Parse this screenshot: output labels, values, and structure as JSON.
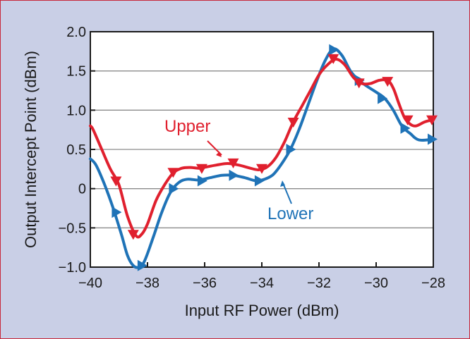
{
  "chart_data": {
    "type": "line",
    "title": "",
    "xlabel": "Input RF Power (dBm)",
    "ylabel": "Output Intercept Point (dBm)",
    "xlim": [
      -40,
      -28
    ],
    "ylim": [
      -1.0,
      2.0
    ],
    "x_ticks": [
      -40,
      -38,
      -36,
      -34,
      -32,
      -30,
      -28
    ],
    "x_tick_labels": [
      "−40",
      "−38",
      "−36",
      "−34",
      "−32",
      "−30",
      "−28"
    ],
    "y_ticks": [
      -1.0,
      -0.5,
      0,
      0.5,
      1.0,
      1.5,
      2.0
    ],
    "y_tick_labels": [
      "−1.0",
      "−0.5",
      "0",
      "0.5",
      "1.0",
      "1.5",
      "2.0"
    ],
    "grid": "horizontal",
    "series": [
      {
        "name": "Upper",
        "color": "#e0202e",
        "marker": "triangle-down",
        "curve": [
          [
            -40.0,
            0.8
          ],
          [
            -39.9,
            0.75
          ],
          [
            -39.6,
            0.5
          ],
          [
            -39.3,
            0.25
          ],
          [
            -39.0,
            0.05
          ],
          [
            -38.7,
            -0.35
          ],
          [
            -38.4,
            -0.6
          ],
          [
            -38.2,
            -0.58
          ],
          [
            -38.0,
            -0.45
          ],
          [
            -37.7,
            -0.15
          ],
          [
            -37.4,
            0.05
          ],
          [
            -37.1,
            0.2
          ],
          [
            -36.8,
            0.26
          ],
          [
            -36.5,
            0.27
          ],
          [
            -36.2,
            0.26
          ],
          [
            -35.9,
            0.28
          ],
          [
            -35.6,
            0.3
          ],
          [
            -35.2,
            0.32
          ],
          [
            -34.8,
            0.3
          ],
          [
            -34.4,
            0.26
          ],
          [
            -34.1,
            0.24
          ],
          [
            -33.8,
            0.28
          ],
          [
            -33.5,
            0.4
          ],
          [
            -33.2,
            0.6
          ],
          [
            -32.9,
            0.85
          ],
          [
            -32.6,
            1.05
          ],
          [
            -32.3,
            1.25
          ],
          [
            -32.0,
            1.45
          ],
          [
            -31.7,
            1.58
          ],
          [
            -31.4,
            1.65
          ],
          [
            -31.1,
            1.58
          ],
          [
            -30.8,
            1.42
          ],
          [
            -30.5,
            1.34
          ],
          [
            -30.2,
            1.34
          ],
          [
            -29.9,
            1.38
          ],
          [
            -29.6,
            1.38
          ],
          [
            -29.4,
            1.28
          ],
          [
            -29.2,
            1.08
          ],
          [
            -29.0,
            0.9
          ],
          [
            -28.8,
            0.82
          ],
          [
            -28.6,
            0.8
          ],
          [
            -28.3,
            0.85
          ],
          [
            -28.0,
            0.88
          ]
        ],
        "markers": [
          [
            -39.1,
            0.1
          ],
          [
            -38.5,
            -0.58
          ],
          [
            -37.1,
            0.21
          ],
          [
            -36.1,
            0.26
          ],
          [
            -35.0,
            0.33
          ],
          [
            -34.0,
            0.26
          ],
          [
            -32.9,
            0.85
          ],
          [
            -31.5,
            1.66
          ],
          [
            -30.6,
            1.35
          ],
          [
            -29.6,
            1.37
          ],
          [
            -28.9,
            0.88
          ],
          [
            -28.05,
            0.88
          ]
        ]
      },
      {
        "name": "Lower",
        "color": "#1f73b7",
        "marker": "triangle-right",
        "curve": [
          [
            -40.0,
            0.38
          ],
          [
            -39.8,
            0.3
          ],
          [
            -39.5,
            0.05
          ],
          [
            -39.2,
            -0.25
          ],
          [
            -38.9,
            -0.6
          ],
          [
            -38.7,
            -0.85
          ],
          [
            -38.5,
            -0.98
          ],
          [
            -38.3,
            -1.0
          ],
          [
            -38.1,
            -0.92
          ],
          [
            -37.8,
            -0.62
          ],
          [
            -37.5,
            -0.3
          ],
          [
            -37.2,
            -0.05
          ],
          [
            -36.9,
            0.08
          ],
          [
            -36.6,
            0.12
          ],
          [
            -36.2,
            0.11
          ],
          [
            -35.8,
            0.14
          ],
          [
            -35.4,
            0.17
          ],
          [
            -35.0,
            0.17
          ],
          [
            -34.6,
            0.14
          ],
          [
            -34.2,
            0.1
          ],
          [
            -33.9,
            0.12
          ],
          [
            -33.6,
            0.18
          ],
          [
            -33.3,
            0.32
          ],
          [
            -33.0,
            0.5
          ],
          [
            -32.7,
            0.75
          ],
          [
            -32.4,
            1.05
          ],
          [
            -32.1,
            1.35
          ],
          [
            -31.8,
            1.62
          ],
          [
            -31.5,
            1.78
          ],
          [
            -31.2,
            1.7
          ],
          [
            -30.9,
            1.5
          ],
          [
            -30.6,
            1.38
          ],
          [
            -30.3,
            1.3
          ],
          [
            -30.0,
            1.23
          ],
          [
            -29.7,
            1.15
          ],
          [
            -29.4,
            1.0
          ],
          [
            -29.1,
            0.8
          ],
          [
            -28.8,
            0.7
          ],
          [
            -28.5,
            0.62
          ],
          [
            -28.0,
            0.63
          ]
        ],
        "markers": [
          [
            -39.1,
            -0.3
          ],
          [
            -38.2,
            -0.98
          ],
          [
            -37.1,
            0.0
          ],
          [
            -36.1,
            0.1
          ],
          [
            -35.0,
            0.17
          ],
          [
            -34.1,
            0.1
          ],
          [
            -33.0,
            0.5
          ],
          [
            -31.5,
            1.77
          ],
          [
            -30.6,
            1.38
          ],
          [
            -29.8,
            1.15
          ],
          [
            -29.0,
            0.77
          ],
          [
            -28.05,
            0.63
          ]
        ]
      }
    ],
    "annotations": [
      {
        "text": "Upper",
        "series": 0
      },
      {
        "text": "Lower",
        "series": 1
      }
    ]
  }
}
